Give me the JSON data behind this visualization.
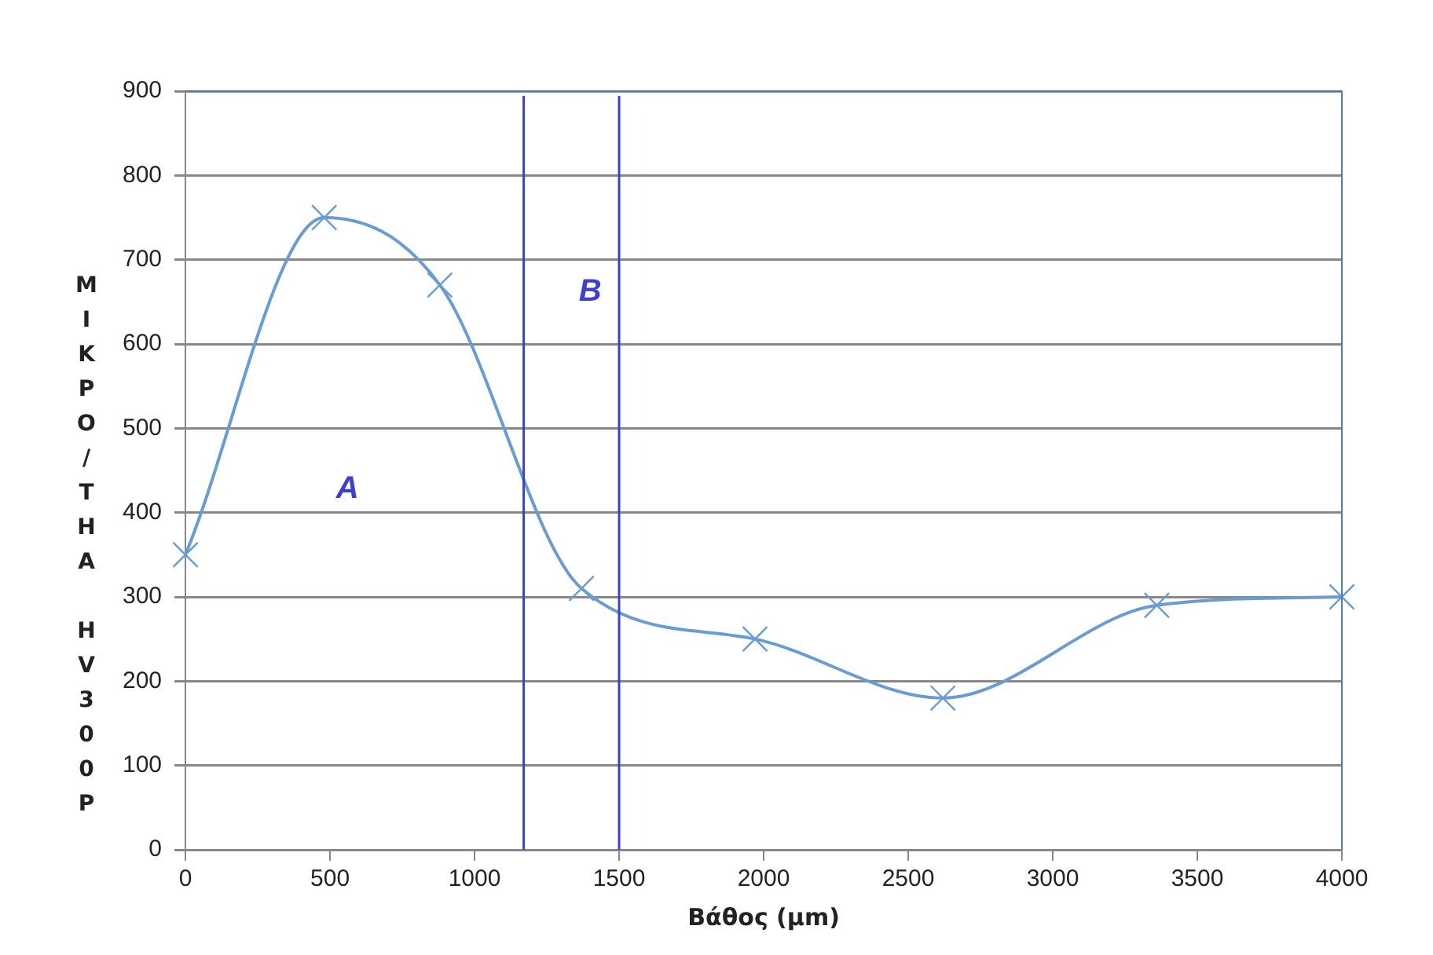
{
  "chart_data": {
    "type": "line",
    "xlabel": "Βάθος (μm)",
    "ylabel": "ΜΙΚΡΟ/ΤΗΑ HV300P",
    "x": [
      0,
      480,
      880,
      1370,
      1970,
      2620,
      3360,
      4000
    ],
    "series": [
      {
        "color": "#6a9bd1",
        "values": [
          350,
          750,
          670,
          310,
          250,
          180,
          290,
          300
        ]
      }
    ],
    "xlim": [
      0,
      4000
    ],
    "xticks": [
      0,
      500,
      1000,
      1500,
      2000,
      2500,
      3000,
      3500,
      4000
    ],
    "ylim": [
      0,
      900
    ],
    "yticks": [
      0,
      100,
      200,
      300,
      400,
      500,
      600,
      700,
      800,
      900
    ],
    "grid": "y",
    "legend": false,
    "marker": "cross",
    "line_style": "solid",
    "ref_lines": [
      {
        "axis": "x",
        "value": 1170,
        "color": "#3f3fcf"
      },
      {
        "axis": "x",
        "value": 1500,
        "color": "#3f3fcf"
      }
    ],
    "annotations": [
      "A",
      "B"
    ]
  }
}
